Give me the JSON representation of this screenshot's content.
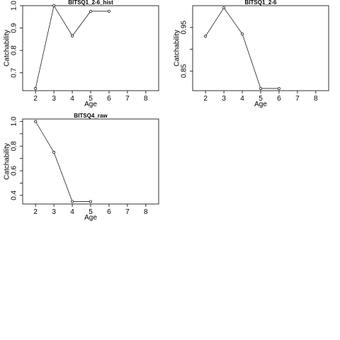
{
  "chart_data": [
    {
      "type": "line",
      "title": "BITSQ1_2-6_hist",
      "xlabel": "Age",
      "ylabel": "Catchability",
      "x": [
        2,
        3,
        4,
        5,
        6
      ],
      "values": [
        0.63,
        1.0,
        0.865,
        0.975,
        0.975
      ],
      "xlim": [
        1.3,
        8.7
      ],
      "ylim": [
        0.62,
        1.0
      ],
      "xticks": [
        2,
        3,
        4,
        5,
        6,
        7,
        8
      ],
      "yticks": [
        0.7,
        0.8,
        0.9,
        1.0
      ],
      "ytick_labels": [
        "0.7",
        "0.8",
        "0.9",
        "1.0"
      ],
      "grid": false
    },
    {
      "type": "line",
      "title": "BITSQ1_2-6",
      "xlabel": "Age",
      "ylabel": "Catchability",
      "x": [
        2,
        3,
        4,
        5,
        6
      ],
      "values": [
        0.93,
        0.995,
        0.935,
        0.81,
        0.81
      ],
      "xlim": [
        1.3,
        8.7
      ],
      "ylim": [
        0.805,
        1.0
      ],
      "xticks": [
        2,
        3,
        4,
        5,
        6,
        7,
        8
      ],
      "yticks": [
        0.85,
        0.9,
        0.95
      ],
      "ytick_labels": [
        "0.85",
        "",
        "0.95"
      ],
      "grid": false
    },
    {
      "type": "line",
      "title": "BITSQ4_raw",
      "xlabel": "Age",
      "ylabel": "Catchability",
      "x": [
        2,
        3,
        4,
        5
      ],
      "values": [
        1.0,
        0.75,
        0.35,
        0.35
      ],
      "xlim": [
        1.3,
        8.7
      ],
      "ylim": [
        0.33,
        1.02
      ],
      "xticks": [
        2,
        3,
        4,
        5,
        6,
        7,
        8
      ],
      "yticks": [
        0.4,
        0.5,
        0.6,
        0.7,
        0.8,
        0.9,
        1.0
      ],
      "ytick_labels": [
        "0.4",
        "",
        "0.6",
        "",
        "0.8",
        "",
        "1.0"
      ],
      "grid": false
    }
  ]
}
